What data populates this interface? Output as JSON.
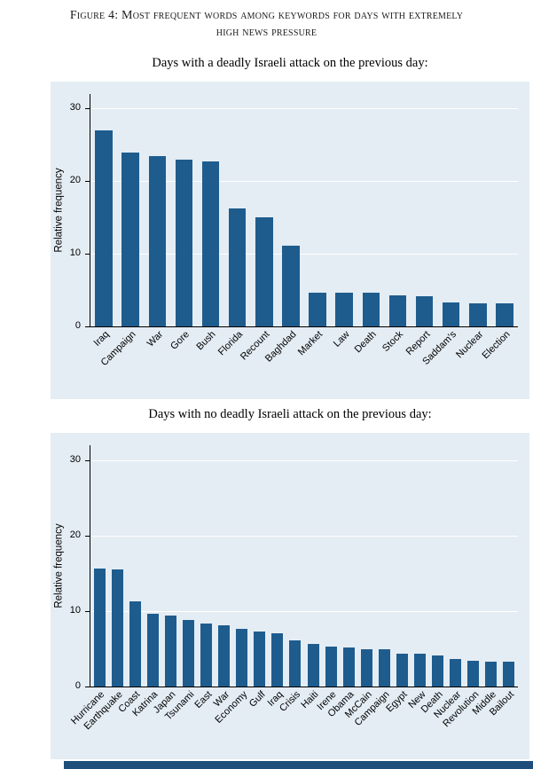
{
  "page": {
    "caption_line1": "Figure 4: Most frequent words among keywords for days with extremely",
    "caption_line2": "high news pressure"
  },
  "chart_data": [
    {
      "type": "bar",
      "title": "Days with a deadly Israeli attack on the previous day:",
      "ylabel": "Relative frequency",
      "xlabel": "",
      "categories": [
        "Iraq",
        "Campaign",
        "War",
        "Gore",
        "Bush",
        "Florida",
        "Recount",
        "Baghdad",
        "Market",
        "Law",
        "Death",
        "Stock",
        "Report",
        "Saddam's",
        "Nuclear",
        "Election"
      ],
      "values": [
        27,
        24,
        23.5,
        23,
        22.7,
        16.3,
        15,
        11.1,
        4.7,
        4.7,
        4.7,
        4.3,
        4.2,
        3.3,
        3.2,
        3.2
      ],
      "yticks": [
        0,
        10,
        20,
        30
      ],
      "ylim": [
        0,
        32
      ],
      "grid": true,
      "legend": "none",
      "bar_color": "#1e5c8e",
      "plot_bg": "#e4edf4",
      "gridline_color": "#ffffff"
    },
    {
      "type": "bar",
      "title": "Days with no deadly Israeli attack on the previous day:",
      "ylabel": "Relative frequency",
      "xlabel": "",
      "categories": [
        "Hurricane",
        "Earthquake",
        "Coast",
        "Katrina",
        "Japan",
        "Tsunami",
        "East",
        "War",
        "Economy",
        "Gulf",
        "Iraq",
        "Crisis",
        "Haiti",
        "Irene",
        "Obama",
        "McCain",
        "Campaign",
        "Egypt",
        "New",
        "Death",
        "Nuclear",
        "Revolution",
        "Middle",
        "Bailout"
      ],
      "values": [
        15.7,
        15.5,
        11.3,
        9.7,
        9.4,
        8.8,
        8.4,
        8.1,
        7.6,
        7.3,
        7.1,
        6.1,
        5.7,
        5.3,
        5.2,
        5.0,
        4.9,
        4.4,
        4.3,
        4.1,
        3.6,
        3.4,
        3.3,
        3.3
      ],
      "yticks": [
        0,
        10,
        20,
        30
      ],
      "ylim": [
        0,
        32
      ],
      "grid": true,
      "legend": "none",
      "bar_color": "#1e5c8e",
      "plot_bg": "#e4edf4",
      "gridline_color": "#ffffff"
    }
  ]
}
